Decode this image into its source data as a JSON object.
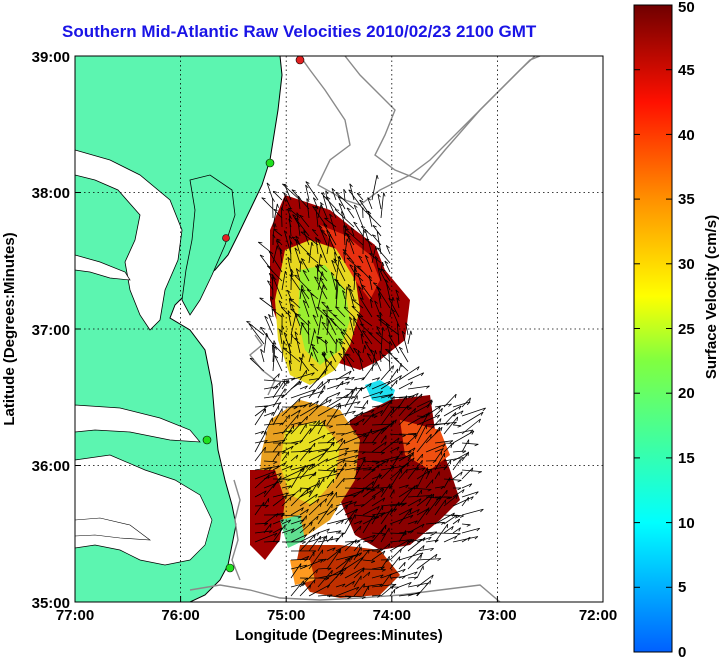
{
  "title": "Southern Mid-Atlantic Raw Velocities 2010/02/23 2100 GMT",
  "x_axis": {
    "label": "Longitude (Degrees:Minutes)",
    "ticks": [
      "77:00",
      "76:00",
      "75:00",
      "74:00",
      "73:00",
      "72:00"
    ]
  },
  "y_axis": {
    "label": "Latitude (Degrees:Minutes)",
    "ticks": [
      "39:00",
      "38:00",
      "37:00",
      "36:00",
      "35:00"
    ]
  },
  "colorbar": {
    "label": "Surface Velocity (cm/s)",
    "ticks": [
      "0",
      "5",
      "10",
      "15",
      "20",
      "25",
      "30",
      "35",
      "40",
      "45",
      "50"
    ],
    "range": [
      0,
      50
    ]
  },
  "colors": {
    "land": "#5cf5b0",
    "title": "#1a14e6",
    "station_green": "#20e020",
    "station_red": "#e02020"
  },
  "map_extent": {
    "lon": [
      -77,
      -72
    ],
    "lat": [
      35,
      39
    ]
  }
}
